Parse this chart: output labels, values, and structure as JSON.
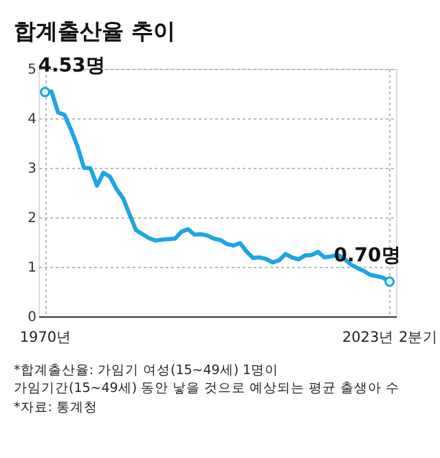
{
  "chart_data": {
    "type": "line",
    "title": "합계출산율 추이",
    "categories": [
      "1970년",
      null,
      null,
      null,
      null,
      null,
      null,
      null,
      null,
      null,
      null,
      null,
      null,
      null,
      null,
      null,
      null,
      null,
      null,
      null,
      null,
      null,
      null,
      null,
      null,
      null,
      null,
      null,
      null,
      null,
      null,
      null,
      null,
      null,
      null,
      null,
      null,
      null,
      null,
      null,
      null,
      null,
      null,
      null,
      null,
      null,
      null,
      null,
      null,
      null,
      null,
      null,
      null,
      "2023년 2분기"
    ],
    "series": [
      {
        "color": "#1ea5e3",
        "values": [
          4.53,
          4.54,
          4.12,
          4.07,
          3.77,
          3.43,
          3.0,
          2.99,
          2.64,
          2.9,
          2.82,
          2.57,
          2.39,
          2.06,
          1.74,
          1.66,
          1.58,
          1.53,
          1.55,
          1.56,
          1.57,
          1.71,
          1.76,
          1.65,
          1.66,
          1.63,
          1.57,
          1.54,
          1.46,
          1.43,
          1.48,
          1.31,
          1.18,
          1.19,
          1.16,
          1.09,
          1.13,
          1.26,
          1.19,
          1.15,
          1.23,
          1.24,
          1.3,
          1.19,
          1.21,
          1.24,
          1.17,
          1.05,
          0.98,
          0.92,
          0.84,
          0.81,
          0.78,
          0.7
        ]
      }
    ],
    "ylim": [
      0,
      5
    ],
    "yticks": [
      0,
      1,
      2,
      3,
      4,
      5
    ],
    "grid": true,
    "marker": "none",
    "line_style": "solid",
    "annotations": [
      {
        "text": "4.53명",
        "x": "1970년",
        "y": 4.53
      },
      {
        "text": "0.70명",
        "x": "2023년 2분기",
        "y": 0.7
      },
      "*합계출산율: 가임기 여성(15~49세) 1명이\n 가임기간(15~49세) 동안 낳을 것으로 예상되는 평균 출생아 수",
      "*자료: 통계청"
    ]
  }
}
